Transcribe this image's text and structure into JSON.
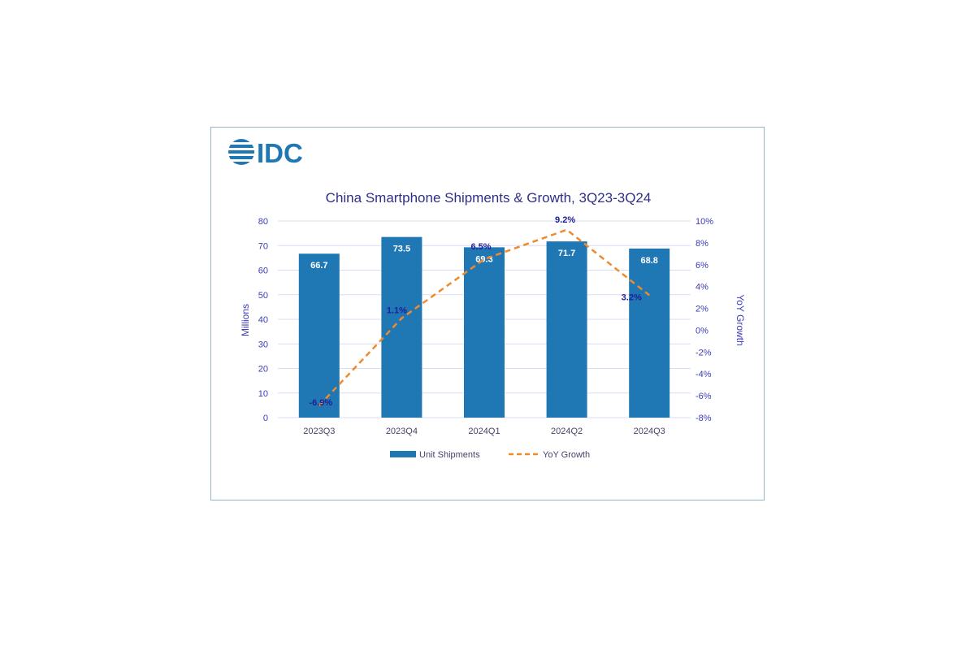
{
  "logo": {
    "text": "IDC"
  },
  "chart_data": {
    "type": "bar",
    "title": "China Smartphone Shipments & Growth, 3Q23-3Q24",
    "categories": [
      "2023Q3",
      "2023Q4",
      "2024Q1",
      "2024Q2",
      "2024Q3"
    ],
    "ylabel": "Millions",
    "y2label": "YoY Growth",
    "ylim": [
      0,
      80
    ],
    "y2lim": [
      -8,
      10
    ],
    "y_ticks": [
      "0",
      "10",
      "20",
      "30",
      "40",
      "50",
      "60",
      "70",
      "80"
    ],
    "y2_ticks": [
      "-8%",
      "-6%",
      "-4%",
      "-2%",
      "0%",
      "2%",
      "4%",
      "6%",
      "8%",
      "10%"
    ],
    "grid": true,
    "legend_position": "bottom",
    "series": [
      {
        "name": "Unit Shipments",
        "type": "bar",
        "axis": "left",
        "values": [
          66.7,
          73.5,
          69.3,
          71.7,
          68.8
        ],
        "labels": [
          "66.7",
          "73.5",
          "69.3",
          "71.7",
          "68.8"
        ],
        "color": "#1f77b4"
      },
      {
        "name": "YoY Growth",
        "type": "line",
        "axis": "right",
        "style": "dashed",
        "values": [
          -6.9,
          1.1,
          6.5,
          9.2,
          3.2
        ],
        "labels": [
          "-6.9%",
          "1.1%",
          "6.5%",
          "9.2%",
          "3.2%"
        ],
        "color": "#f08a2c"
      }
    ]
  }
}
